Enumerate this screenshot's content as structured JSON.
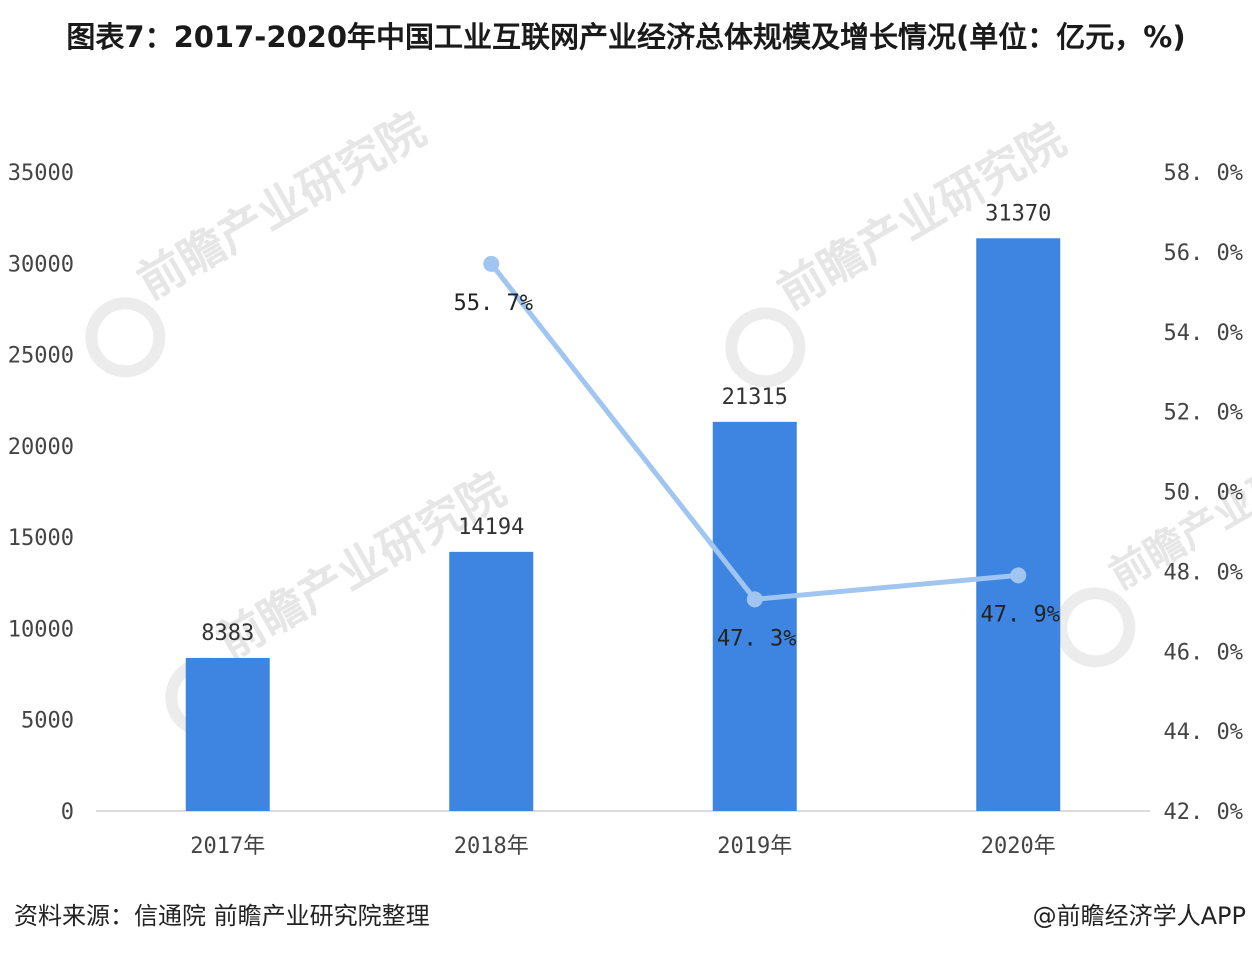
{
  "title": "图表7：2017-2020年中国工业互联网产业经济总体规模及增长情况(单位：亿元，%)",
  "footer": {
    "source": "资料来源：信通院 前瞻产业研究院整理",
    "credit": "@前瞻经济学人APP"
  },
  "watermark": {
    "text": "前瞻产业研究院"
  },
  "chart_data": {
    "type": "bar",
    "categories": [
      "2017年",
      "2018年",
      "2019年",
      "2020年"
    ],
    "series": [
      {
        "type": "bar",
        "axis": "left",
        "color": "#3d85e0",
        "values": [
          8383,
          14194,
          21315,
          31370
        ],
        "labels": [
          "8383",
          "14194",
          "21315",
          "31370"
        ]
      },
      {
        "type": "line",
        "axis": "right",
        "color": "#9fc5f0",
        "values": [
          null,
          55.7,
          47.3,
          47.9
        ],
        "labels": [
          "",
          "55. 7%",
          "47. 3%",
          "47. 9%"
        ]
      }
    ],
    "y_left": {
      "min": 0,
      "max": 35000,
      "ticks": [
        0,
        5000,
        10000,
        15000,
        20000,
        25000,
        30000,
        35000
      ],
      "tick_labels": [
        "0",
        "5000",
        "10000",
        "15000",
        "20000",
        "25000",
        "30000",
        "35000"
      ]
    },
    "y_right": {
      "min": 42.0,
      "max": 58.0,
      "ticks": [
        42,
        44,
        46,
        48,
        50,
        52,
        54,
        56,
        58
      ],
      "tick_labels": [
        "42. 0%",
        "44. 0%",
        "46. 0%",
        "48. 0%",
        "50. 0%",
        "52. 0%",
        "54. 0%",
        "56. 0%",
        "58. 0%"
      ]
    },
    "grid": false,
    "legend": "none"
  }
}
